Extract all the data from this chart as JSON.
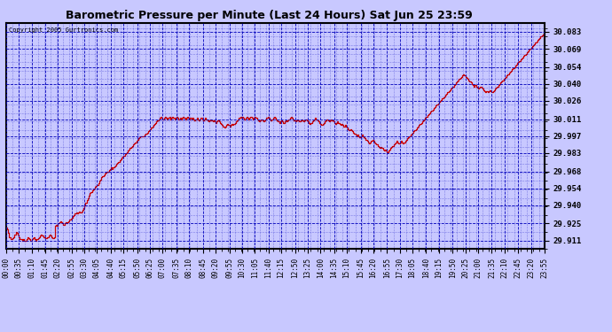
{
  "title": "Barometric Pressure per Minute (Last 24 Hours) Sat Jun 25 23:59",
  "copyright": "Copyright 2005 Gurtronics.com",
  "background_color": "#c8c8ff",
  "plot_bg_color": "#c8c8ff",
  "line_color": "#cc0000",
  "grid_color": "#0000bb",
  "border_color": "#000000",
  "title_color": "#000000",
  "ylabel_values": [
    29.911,
    29.925,
    29.94,
    29.954,
    29.968,
    29.983,
    29.997,
    30.011,
    30.026,
    30.04,
    30.054,
    30.069,
    30.083
  ],
  "ylim": [
    29.904,
    30.09
  ],
  "x_tick_labels": [
    "00:00",
    "00:35",
    "01:10",
    "01:45",
    "02:20",
    "02:55",
    "03:30",
    "04:05",
    "04:40",
    "05:15",
    "05:50",
    "06:25",
    "07:00",
    "07:35",
    "08:10",
    "08:45",
    "09:20",
    "09:55",
    "10:30",
    "11:05",
    "11:40",
    "12:15",
    "12:50",
    "13:25",
    "14:00",
    "14:35",
    "15:10",
    "15:45",
    "16:20",
    "16:55",
    "17:30",
    "18:05",
    "18:40",
    "19:15",
    "19:50",
    "20:25",
    "21:00",
    "21:35",
    "22:10",
    "22:45",
    "23:20",
    "23:55"
  ],
  "pressure_data": [
    29.922,
    29.92,
    29.917,
    29.914,
    29.912,
    29.912,
    29.913,
    29.914,
    29.916,
    29.918,
    29.917,
    29.916,
    29.914,
    29.912,
    29.912,
    29.911,
    29.912,
    29.911,
    29.911,
    29.912,
    29.914,
    29.913,
    29.912,
    29.911,
    29.912,
    29.913,
    29.914,
    29.912,
    29.911,
    29.912,
    29.913,
    29.914,
    29.915,
    29.916,
    29.915,
    29.914,
    29.914,
    29.913,
    29.913,
    29.914,
    29.915,
    29.916,
    29.915,
    29.914,
    29.913,
    29.914,
    29.923,
    29.924,
    29.923,
    29.925,
    29.926,
    29.927,
    29.926,
    29.925,
    29.924,
    29.925,
    29.926,
    29.925,
    29.926,
    29.927,
    29.928,
    29.929,
    29.93,
    29.931,
    29.932,
    29.933,
    29.934,
    29.933,
    29.934,
    29.935,
    29.934,
    29.935,
    29.936,
    29.938,
    29.94,
    29.942,
    29.944,
    29.946,
    29.948,
    29.95,
    29.951,
    29.952,
    29.953,
    29.954,
    29.955,
    29.956,
    29.957,
    29.958,
    29.96,
    29.961,
    29.963,
    29.964,
    29.965,
    29.966,
    29.967,
    29.968,
    29.968,
    29.969,
    29.97,
    29.971,
    29.97,
    29.971,
    29.972,
    29.973,
    29.974,
    29.975,
    29.976,
    29.977,
    29.978,
    29.979,
    29.98,
    29.981,
    29.982,
    29.983,
    29.984,
    29.985,
    29.986,
    29.987,
    29.988,
    29.989,
    29.99,
    29.991,
    29.992,
    29.993,
    29.994,
    29.995,
    29.996,
    29.997,
    29.997,
    29.997,
    29.997,
    29.998,
    29.999,
    30.0,
    30.001,
    30.002,
    30.003,
    30.004,
    30.005,
    30.006,
    30.007,
    30.008,
    30.009,
    30.01,
    30.011,
    30.012,
    30.013,
    30.012,
    30.011,
    30.012,
    30.013,
    30.012,
    30.011,
    30.012,
    30.013,
    30.011,
    30.012,
    30.013,
    30.012,
    30.011,
    30.012,
    30.013,
    30.012,
    30.011,
    30.012,
    30.011,
    30.012,
    30.013,
    30.012,
    30.011,
    30.012,
    30.013,
    30.012,
    30.011,
    30.012,
    30.011,
    30.012,
    30.011,
    30.01,
    30.011,
    30.012,
    30.011,
    30.01,
    30.011,
    30.012,
    30.011,
    30.01,
    30.011,
    30.012,
    30.011,
    30.01,
    30.009,
    30.01,
    30.011,
    30.01,
    30.009,
    30.01,
    30.009,
    30.008,
    30.009,
    30.01,
    30.009,
    30.008,
    30.007,
    30.006,
    30.005,
    30.004,
    30.005,
    30.006,
    30.007,
    30.006,
    30.005,
    30.006,
    30.007,
    30.006,
    30.007,
    30.008,
    30.009,
    30.01,
    30.011,
    30.012,
    30.013,
    30.012,
    30.013,
    30.012,
    30.011,
    30.012,
    30.013,
    30.012,
    30.011,
    30.012,
    30.013,
    30.012,
    30.011,
    30.012,
    30.013,
    30.012,
    30.011,
    30.01,
    30.009,
    30.01,
    30.011,
    30.01,
    30.009,
    30.01,
    30.011,
    30.012,
    30.013,
    30.012,
    30.011,
    30.01,
    30.011,
    30.012,
    30.013,
    30.012,
    30.011,
    30.01,
    30.009,
    30.008,
    30.009,
    30.01,
    30.009,
    30.008,
    30.009,
    30.01,
    30.009,
    30.01,
    30.011,
    30.012,
    30.013,
    30.012,
    30.011,
    30.01,
    30.009,
    30.01,
    30.011,
    30.01,
    30.009,
    30.01,
    30.011,
    30.01,
    30.009,
    30.01,
    30.011,
    30.01,
    30.009,
    30.008,
    30.007,
    30.008,
    30.009,
    30.01,
    30.011,
    30.012,
    30.011,
    30.01,
    30.009,
    30.008,
    30.007,
    30.006,
    30.007,
    30.008,
    30.009,
    30.01,
    30.011,
    30.01,
    30.009,
    30.01,
    30.011,
    30.01,
    30.009,
    30.008,
    30.007,
    30.008,
    30.009,
    30.008,
    30.007,
    30.006,
    30.007,
    30.006,
    30.005,
    30.006,
    30.005,
    30.004,
    30.003,
    30.002,
    30.003,
    30.002,
    30.001,
    30.0,
    29.999,
    29.998,
    29.997,
    29.998,
    29.997,
    29.996,
    29.997,
    29.998,
    29.997,
    29.996,
    29.995,
    29.994,
    29.993,
    29.992,
    29.991,
    29.992,
    29.993,
    29.994,
    29.993,
    29.992,
    29.991,
    29.99,
    29.989,
    29.988,
    29.987,
    29.988,
    29.987,
    29.986,
    29.985,
    29.986,
    29.985,
    29.984,
    29.985,
    29.986,
    29.987,
    29.988,
    29.989,
    29.99,
    29.991,
    29.992,
    29.993,
    29.992,
    29.991,
    29.992,
    29.993,
    29.992,
    29.991,
    29.992,
    29.993,
    29.994,
    29.995,
    29.996,
    29.997,
    29.998,
    29.999,
    30.0,
    30.001,
    30.002,
    30.003,
    30.004,
    30.005,
    30.006,
    30.007,
    30.008,
    30.009,
    30.01,
    30.011,
    30.012,
    30.013,
    30.014,
    30.015,
    30.016,
    30.017,
    30.018,
    30.019,
    30.02,
    30.021,
    30.022,
    30.023,
    30.024,
    30.025,
    30.026,
    30.027,
    30.028,
    30.029,
    30.03,
    30.031,
    30.032,
    30.033,
    30.034,
    30.035,
    30.036,
    30.037,
    30.038,
    30.039,
    30.04,
    30.041,
    30.042,
    30.043,
    30.044,
    30.045,
    30.046,
    30.047,
    30.048,
    30.047,
    30.046,
    30.045,
    30.044,
    30.043,
    30.042,
    30.041,
    30.04,
    30.039,
    30.038,
    30.039,
    30.038,
    30.037,
    30.036,
    30.037,
    30.038,
    30.037,
    30.036,
    30.035,
    30.034,
    30.033,
    30.034,
    30.033,
    30.034,
    30.035,
    30.034,
    30.033,
    30.034,
    30.035,
    30.036,
    30.037,
    30.038,
    30.039,
    30.04,
    30.041,
    30.042,
    30.043,
    30.044,
    30.045,
    30.046,
    30.047,
    30.048,
    30.049,
    30.05,
    30.051,
    30.052,
    30.053,
    30.054,
    30.055,
    30.056,
    30.057,
    30.058,
    30.059,
    30.06,
    30.061,
    30.062,
    30.063,
    30.064,
    30.065,
    30.066,
    30.067,
    30.068,
    30.069,
    30.07,
    30.071,
    30.072,
    30.073,
    30.074,
    30.075,
    30.076,
    30.077,
    30.078,
    30.079,
    30.08,
    30.081,
    30.082,
    30.083
  ]
}
